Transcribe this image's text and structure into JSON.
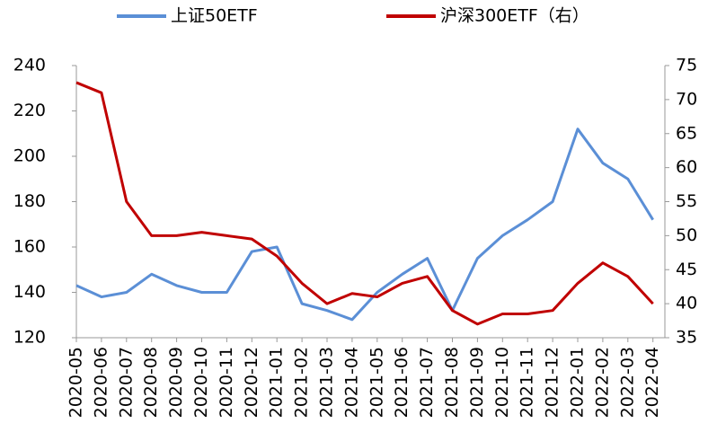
{
  "chart_data": {
    "type": "line",
    "categories": [
      "2020-05",
      "2020-06",
      "2020-07",
      "2020-08",
      "2020-09",
      "2020-10",
      "2020-11",
      "2020-12",
      "2021-01",
      "2021-02",
      "2021-03",
      "2021-04",
      "2021-05",
      "2021-06",
      "2021-07",
      "2021-08",
      "2021-09",
      "2021-10",
      "2021-11",
      "2021-12",
      "2022-01",
      "2022-02",
      "2022-03",
      "2022-04"
    ],
    "series": [
      {
        "name": "上证50ETF",
        "color": "#5b8fd6",
        "axis": "y",
        "values": [
          143,
          138,
          140,
          148,
          143,
          140,
          140,
          158,
          160,
          135,
          132,
          128,
          140,
          148,
          155,
          132,
          155,
          165,
          172,
          180,
          212,
          197,
          190,
          172
        ]
      },
      {
        "name": "沪深300ETF（右）",
        "color": "#c00000",
        "axis": "y2",
        "values": [
          72.5,
          71,
          55,
          50,
          50,
          50.5,
          50,
          49.5,
          47,
          43,
          40,
          41.5,
          41,
          43,
          44,
          39,
          37,
          38.5,
          38.5,
          39,
          43,
          46,
          44,
          40
        ]
      }
    ],
    "ylim": [
      120,
      240
    ],
    "yticks": [
      120,
      140,
      160,
      180,
      200,
      220,
      240
    ],
    "y2lim": [
      35,
      75
    ],
    "y2ticks": [
      35,
      40,
      45,
      50,
      55,
      60,
      65,
      70,
      75
    ],
    "legend": "top"
  }
}
